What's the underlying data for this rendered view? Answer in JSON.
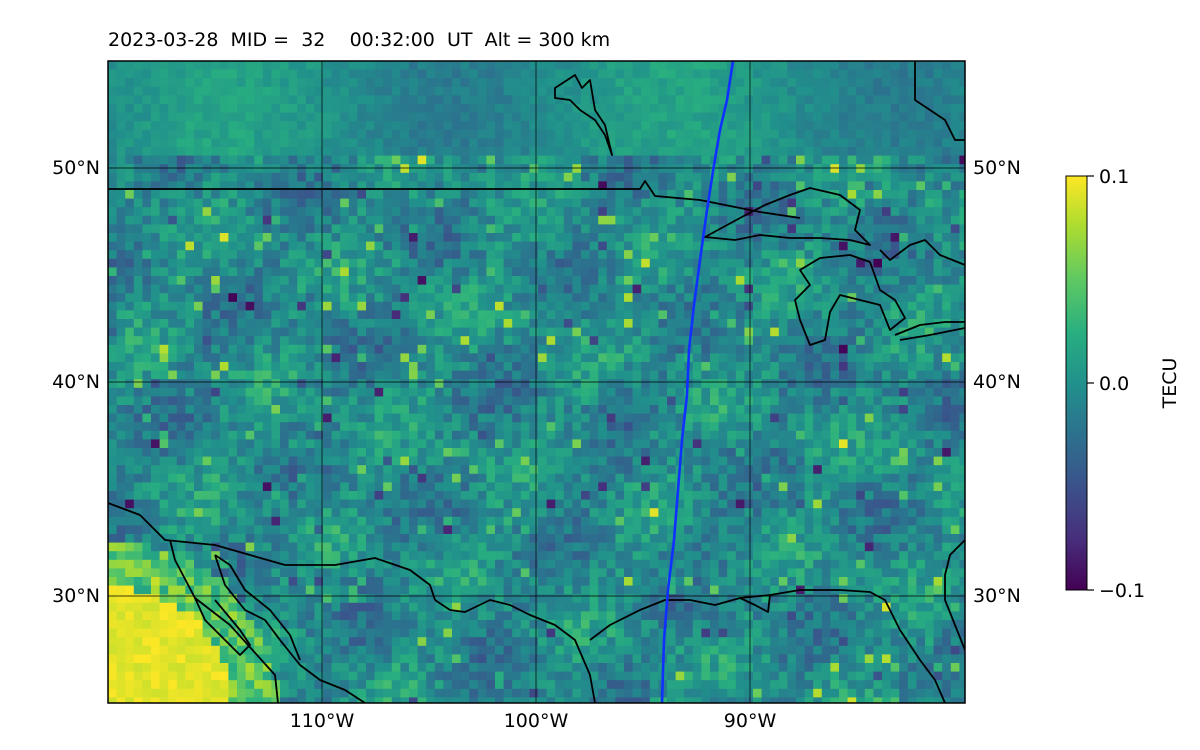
{
  "title": {
    "date": "2023-03-28",
    "mid_label": "MID =",
    "mid_value": "32",
    "time": "00:32:00",
    "time_unit": "UT",
    "alt_label": "Alt =",
    "alt_value": "300 km"
  },
  "map": {
    "lon_range": [
      -120,
      -80
    ],
    "lat_range": [
      25,
      55
    ],
    "lon_ticks": [
      {
        "value": -110,
        "label": "110°W"
      },
      {
        "value": -100,
        "label": "100°W"
      },
      {
        "value": -90,
        "label": "90°W"
      }
    ],
    "lat_ticks": [
      {
        "value": 30,
        "label": "30°N"
      },
      {
        "value": 40,
        "label": "40°N"
      },
      {
        "value": 50,
        "label": "50°N"
      }
    ],
    "gridlines": true,
    "field_colormap": "viridis",
    "coastline_color": "#000000",
    "track_color": "#1030ff"
  },
  "colorbar": {
    "label": "TECU",
    "min": -0.1,
    "max": 0.1,
    "ticks": [
      {
        "value": 0.1,
        "label": "0.1"
      },
      {
        "value": 0.0,
        "label": "0.0"
      },
      {
        "value": -0.1,
        "label": "−0.1"
      }
    ],
    "stops": [
      "#440154",
      "#3b528b",
      "#21918c",
      "#5ec962",
      "#fde725"
    ]
  }
}
